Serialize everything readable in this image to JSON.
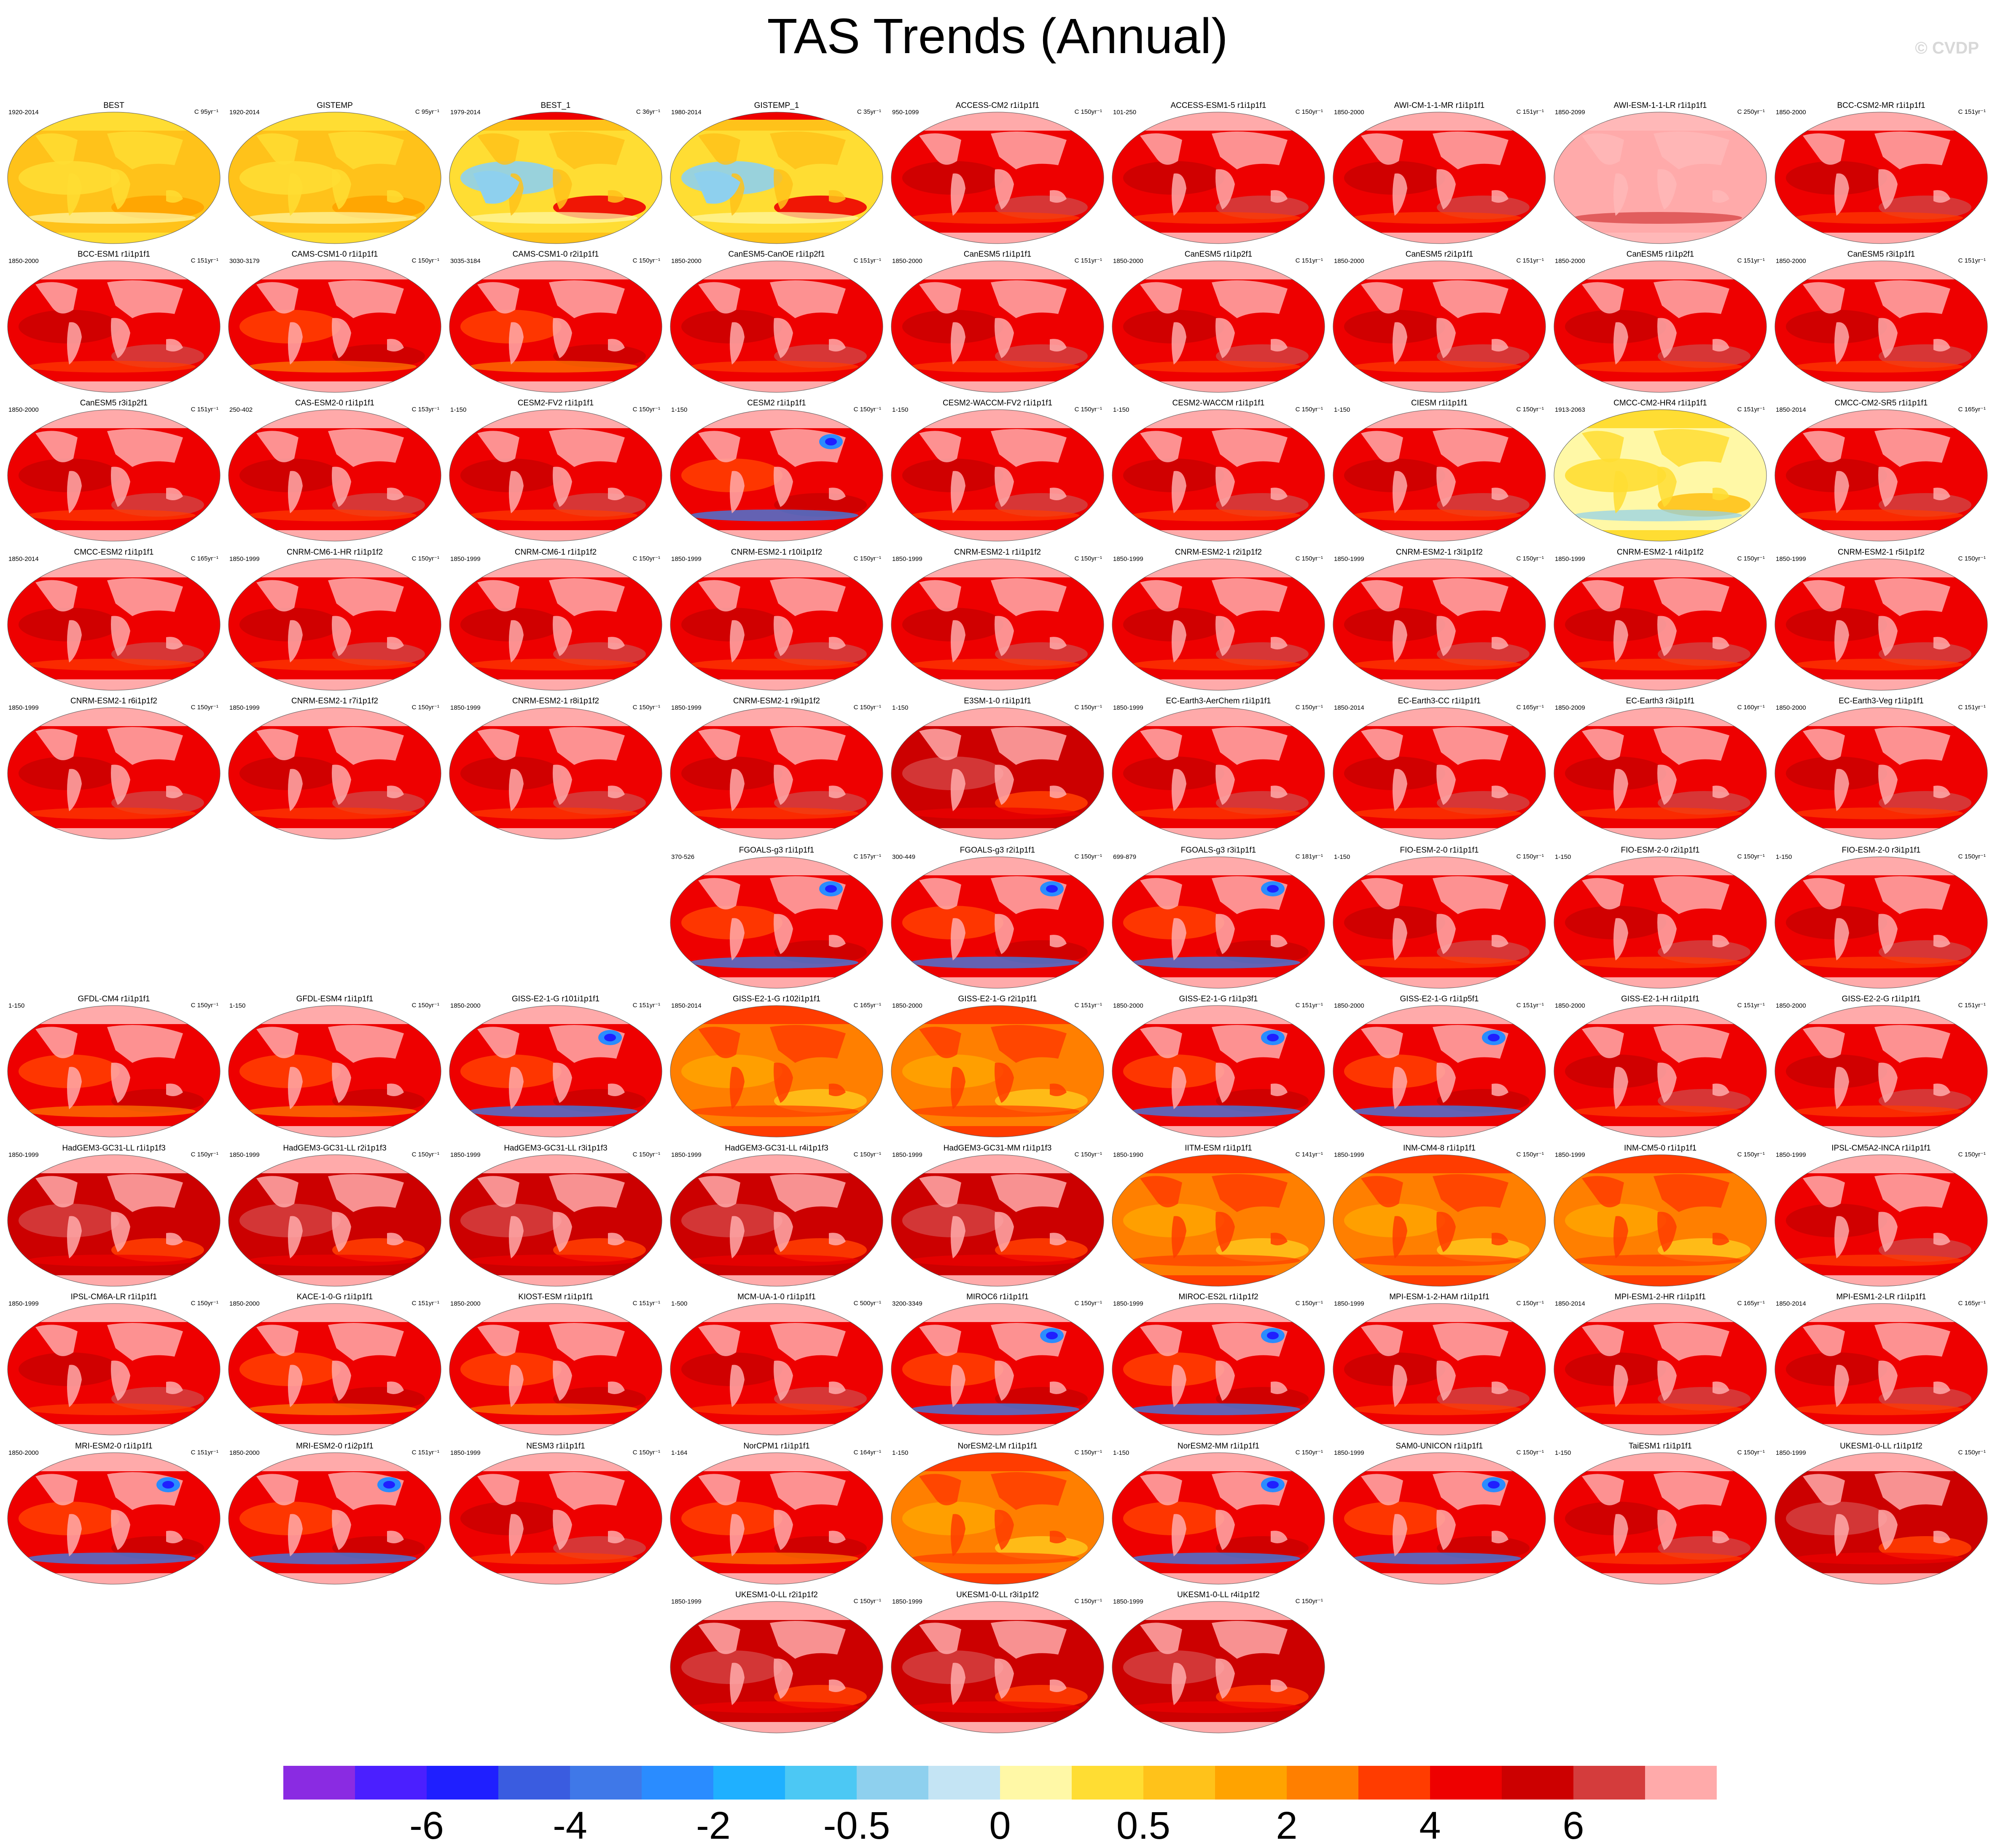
{
  "title": "TAS Trends (Annual)",
  "watermark": "© CVDP",
  "colorbar": {
    "colors": [
      "#8a2be2",
      "#4b1fff",
      "#1f1fff",
      "#3a5ce0",
      "#3f78e8",
      "#2a8cff",
      "#1fb0ff",
      "#4cc8f4",
      "#8ed0ee",
      "#c4e4f4",
      "#fff8a6",
      "#ffdd33",
      "#ffc21a",
      "#ffa300",
      "#ff7f00",
      "#ff3c00",
      "#ee0000",
      "#cc0000",
      "#d43c3c",
      "#ffaaaa"
    ],
    "labels": [
      "-6",
      "-4",
      "-2",
      "-0.5",
      "0",
      "0.5",
      "2",
      "4",
      "6"
    ]
  },
  "panels": [
    {
      "name": "BEST",
      "period": "1920-2014",
      "units": "C 95yr⁻¹",
      "style": "obs"
    },
    {
      "name": "GISTEMP",
      "period": "1920-2014",
      "units": "C 95yr⁻¹",
      "style": "obs"
    },
    {
      "name": "BEST_1",
      "period": "1979-2014",
      "units": "C 36yr⁻¹",
      "style": "obs2"
    },
    {
      "name": "GISTEMP_1",
      "period": "1980-2014",
      "units": "C 35yr⁻¹",
      "style": "obs2"
    },
    {
      "name": "ACCESS-CM2 r1i1p1f1",
      "period": "950-1099",
      "units": "C 150yr⁻¹",
      "style": "red"
    },
    {
      "name": "ACCESS-ESM1-5 r1i1p1f1",
      "period": "101-250",
      "units": "C 150yr⁻¹",
      "style": "red"
    },
    {
      "name": "AWI-CM-1-1-MR r1i1p1f1",
      "period": "1850-2000",
      "units": "C 151yr⁻¹",
      "style": "red"
    },
    {
      "name": "AWI-ESM-1-1-LR r1i1p1f1",
      "period": "1850-2099",
      "units": "C 250yr⁻¹",
      "style": "pink"
    },
    {
      "name": "BCC-CSM2-MR r1i1p1f1",
      "period": "1850-2000",
      "units": "C 151yr⁻¹",
      "style": "red"
    },
    {
      "name": "BCC-ESM1 r1i1p1f1",
      "period": "1850-2000",
      "units": "C 151yr⁻¹",
      "style": "red"
    },
    {
      "name": "CAMS-CSM1-0 r1i1p1f1",
      "period": "3030-3179",
      "units": "C 150yr⁻¹",
      "style": "redorange"
    },
    {
      "name": "CAMS-CSM1-0 r2i1p1f1",
      "period": "3035-3184",
      "units": "C 150yr⁻¹",
      "style": "redorange"
    },
    {
      "name": "CanESM5-CanOE r1i1p2f1",
      "period": "1850-2000",
      "units": "C 151yr⁻¹",
      "style": "red"
    },
    {
      "name": "CanESM5 r1i1p1f1",
      "period": "1850-2000",
      "units": "C 151yr⁻¹",
      "style": "red"
    },
    {
      "name": "CanESM5 r1i1p2f1",
      "period": "1850-2000",
      "units": "C 151yr⁻¹",
      "style": "red"
    },
    {
      "name": "CanESM5 r2i1p1f1",
      "period": "1850-2000",
      "units": "C 151yr⁻¹",
      "style": "red"
    },
    {
      "name": "CanESM5 r1i1p2f1",
      "period": "1850-2000",
      "units": "C 151yr⁻¹",
      "style": "red"
    },
    {
      "name": "CanESM5 r3i1p1f1",
      "period": "1850-2000",
      "units": "C 151yr⁻¹",
      "style": "red"
    },
    {
      "name": "CanESM5 r3i1p2f1",
      "period": "1850-2000",
      "units": "C 151yr⁻¹",
      "style": "red"
    },
    {
      "name": "CAS-ESM2-0 r1i1p1f1",
      "period": "250-402",
      "units": "C 153yr⁻¹",
      "style": "red"
    },
    {
      "name": "CESM2-FV2 r1i1p1f1",
      "period": "1-150",
      "units": "C 150yr⁻¹",
      "style": "red"
    },
    {
      "name": "CESM2 r1i1p1f1",
      "period": "1-150",
      "units": "C 150yr⁻¹",
      "style": "redblue"
    },
    {
      "name": "CESM2-WACCM-FV2 r1i1p1f1",
      "period": "1-150",
      "units": "C 150yr⁻¹",
      "style": "red"
    },
    {
      "name": "CESM2-WACCM r1i1p1f1",
      "period": "1-150",
      "units": "C 150yr⁻¹",
      "style": "red"
    },
    {
      "name": "CIESM r1i1p1f1",
      "period": "1-150",
      "units": "C 150yr⁻¹",
      "style": "red"
    },
    {
      "name": "CMCC-CM2-HR4 r1i1p1f1",
      "period": "1913-2063",
      "units": "C 151yr⁻¹",
      "style": "yellow"
    },
    {
      "name": "CMCC-CM2-SR5 r1i1p1f1",
      "period": "1850-2014",
      "units": "C 165yr⁻¹",
      "style": "red"
    },
    {
      "name": "CMCC-ESM2 r1i1p1f1",
      "period": "1850-2014",
      "units": "C 165yr⁻¹",
      "style": "red"
    },
    {
      "name": "CNRM-CM6-1-HR r1i1p1f2",
      "period": "1850-1999",
      "units": "C 150yr⁻¹",
      "style": "red"
    },
    {
      "name": "CNRM-CM6-1 r1i1p1f2",
      "period": "1850-1999",
      "units": "C 150yr⁻¹",
      "style": "red"
    },
    {
      "name": "CNRM-ESM2-1 r10i1p1f2",
      "period": "1850-1999",
      "units": "C 150yr⁻¹",
      "style": "red"
    },
    {
      "name": "CNRM-ESM2-1 r1i1p1f2",
      "period": "1850-1999",
      "units": "C 150yr⁻¹",
      "style": "red"
    },
    {
      "name": "CNRM-ESM2-1 r2i1p1f2",
      "period": "1850-1999",
      "units": "C 150yr⁻¹",
      "style": "red"
    },
    {
      "name": "CNRM-ESM2-1 r3i1p1f2",
      "period": "1850-1999",
      "units": "C 150yr⁻¹",
      "style": "red"
    },
    {
      "name": "CNRM-ESM2-1 r4i1p1f2",
      "period": "1850-1999",
      "units": "C 150yr⁻¹",
      "style": "red"
    },
    {
      "name": "CNRM-ESM2-1 r5i1p1f2",
      "period": "1850-1999",
      "units": "C 150yr⁻¹",
      "style": "red"
    },
    {
      "name": "CNRM-ESM2-1 r6i1p1f2",
      "period": "1850-1999",
      "units": "C 150yr⁻¹",
      "style": "red"
    },
    {
      "name": "CNRM-ESM2-1 r7i1p1f2",
      "period": "1850-1999",
      "units": "C 150yr⁻¹",
      "style": "red"
    },
    {
      "name": "CNRM-ESM2-1 r8i1p1f2",
      "period": "1850-1999",
      "units": "C 150yr⁻¹",
      "style": "red"
    },
    {
      "name": "CNRM-ESM2-1 r9i1p1f2",
      "period": "1850-1999",
      "units": "C 150yr⁻¹",
      "style": "red"
    },
    {
      "name": "E3SM-1-0 r1i1p1f1",
      "period": "1-150",
      "units": "C 150yr⁻¹",
      "style": "darkred"
    },
    {
      "name": "EC-Earth3-AerChem r1i1p1f1",
      "period": "1850-1999",
      "units": "C 150yr⁻¹",
      "style": "red"
    },
    {
      "name": "EC-Earth3-CC r1i1p1f1",
      "period": "1850-2014",
      "units": "C 165yr⁻¹",
      "style": "red"
    },
    {
      "name": "EC-Earth3 r3i1p1f1",
      "period": "1850-2009",
      "units": "C 160yr⁻¹",
      "style": "red"
    },
    {
      "name": "EC-Earth3-Veg r1i1p1f1",
      "period": "1850-2000",
      "units": "C 151yr⁻¹",
      "style": "red"
    },
    {
      "name": "FGOALS-g3 r1i1p1f1",
      "period": "370-526",
      "units": "C 157yr⁻¹",
      "style": "redblue"
    },
    {
      "name": "FGOALS-g3 r2i1p1f1",
      "period": "300-449",
      "units": "C 150yr⁻¹",
      "style": "redblue"
    },
    {
      "name": "FGOALS-g3 r3i1p1f1",
      "period": "699-879",
      "units": "C 181yr⁻¹",
      "style": "redblue"
    },
    {
      "name": "FIO-ESM-2-0 r1i1p1f1",
      "period": "1-150",
      "units": "C 150yr⁻¹",
      "style": "red"
    },
    {
      "name": "FIO-ESM-2-0 r2i1p1f1",
      "period": "1-150",
      "units": "C 150yr⁻¹",
      "style": "red"
    },
    {
      "name": "FIO-ESM-2-0 r3i1p1f1",
      "period": "1-150",
      "units": "C 150yr⁻¹",
      "style": "red"
    },
    {
      "name": "GFDL-CM4 r1i1p1f1",
      "period": "1-150",
      "units": "C 150yr⁻¹",
      "style": "redorange"
    },
    {
      "name": "GFDL-ESM4 r1i1p1f1",
      "period": "1-150",
      "units": "C 150yr⁻¹",
      "style": "redorange"
    },
    {
      "name": "GISS-E2-1-G r101i1p1f1",
      "period": "1850-2000",
      "units": "C 151yr⁻¹",
      "style": "redblue"
    },
    {
      "name": "GISS-E2-1-G r102i1p1f1",
      "period": "1850-2014",
      "units": "C 165yr⁻¹",
      "style": "orange"
    },
    {
      "name": "GISS-E2-1-G r2i1p1f1",
      "period": "1850-2000",
      "units": "C 151yr⁻¹",
      "style": "orange"
    },
    {
      "name": "GISS-E2-1-G r1i1p3f1",
      "period": "1850-2000",
      "units": "C 151yr⁻¹",
      "style": "redblue"
    },
    {
      "name": "GISS-E2-1-G r1i1p5f1",
      "period": "1850-2000",
      "units": "C 151yr⁻¹",
      "style": "redblue"
    },
    {
      "name": "GISS-E2-1-H r1i1p1f1",
      "period": "1850-2000",
      "units": "C 151yr⁻¹",
      "style": "red"
    },
    {
      "name": "GISS-E2-2-G r1i1p1f1",
      "period": "1850-2000",
      "units": "C 151yr⁻¹",
      "style": "red"
    },
    {
      "name": "HadGEM3-GC31-LL r1i1p1f3",
      "period": "1850-1999",
      "units": "C 150yr⁻¹",
      "style": "darkred"
    },
    {
      "name": "HadGEM3-GC31-LL r2i1p1f3",
      "period": "1850-1999",
      "units": "C 150yr⁻¹",
      "style": "darkred"
    },
    {
      "name": "HadGEM3-GC31-LL r3i1p1f3",
      "period": "1850-1999",
      "units": "C 150yr⁻¹",
      "style": "darkred"
    },
    {
      "name": "HadGEM3-GC31-LL r4i1p1f3",
      "period": "1850-1999",
      "units": "C 150yr⁻¹",
      "style": "darkred"
    },
    {
      "name": "HadGEM3-GC31-MM r1i1p1f3",
      "period": "1850-1999",
      "units": "C 150yr⁻¹",
      "style": "darkred"
    },
    {
      "name": "IITM-ESM r1i1p1f1",
      "period": "1850-1990",
      "units": "C 141yr⁻¹",
      "style": "orange"
    },
    {
      "name": "INM-CM4-8 r1i1p1f1",
      "period": "1850-1999",
      "units": "C 150yr⁻¹",
      "style": "orange"
    },
    {
      "name": "INM-CM5-0 r1i1p1f1",
      "period": "1850-1999",
      "units": "C 150yr⁻¹",
      "style": "orange"
    },
    {
      "name": "IPSL-CM5A2-INCA r1i1p1f1",
      "period": "1850-1999",
      "units": "C 150yr⁻¹",
      "style": "red"
    },
    {
      "name": "IPSL-CM6A-LR r1i1p1f1",
      "period": "1850-1999",
      "units": "C 150yr⁻¹",
      "style": "red"
    },
    {
      "name": "KACE-1-0-G r1i1p1f1",
      "period": "1850-2000",
      "units": "C 151yr⁻¹",
      "style": "redorange"
    },
    {
      "name": "KIOST-ESM r1i1p1f1",
      "period": "1850-2000",
      "units": "C 151yr⁻¹",
      "style": "redorange"
    },
    {
      "name": "MCM-UA-1-0 r1i1p1f1",
      "period": "1-500",
      "units": "C 500yr⁻¹",
      "style": "red"
    },
    {
      "name": "MIROC6 r1i1p1f1",
      "period": "3200-3349",
      "units": "C 150yr⁻¹",
      "style": "redblue"
    },
    {
      "name": "MIROC-ES2L r1i1p1f2",
      "period": "1850-1999",
      "units": "C 150yr⁻¹",
      "style": "redblue"
    },
    {
      "name": "MPI-ESM-1-2-HAM r1i1p1f1",
      "period": "1850-1999",
      "units": "C 150yr⁻¹",
      "style": "red"
    },
    {
      "name": "MPI-ESM1-2-HR r1i1p1f1",
      "period": "1850-2014",
      "units": "C 165yr⁻¹",
      "style": "red"
    },
    {
      "name": "MPI-ESM1-2-LR r1i1p1f1",
      "period": "1850-2014",
      "units": "C 165yr⁻¹",
      "style": "red"
    },
    {
      "name": "MRI-ESM2-0 r1i1p1f1",
      "period": "1850-2000",
      "units": "C 151yr⁻¹",
      "style": "redblue"
    },
    {
      "name": "MRI-ESM2-0 r1i2p1f1",
      "period": "1850-2000",
      "units": "C 151yr⁻¹",
      "style": "redblue"
    },
    {
      "name": "NESM3 r1i1p1f1",
      "period": "1850-1999",
      "units": "C 150yr⁻¹",
      "style": "red"
    },
    {
      "name": "NorCPM1 r1i1p1f1",
      "period": "1-164",
      "units": "C 164yr⁻¹",
      "style": "redorange"
    },
    {
      "name": "NorESM2-LM r1i1p1f1",
      "period": "1-150",
      "units": "C 150yr⁻¹",
      "style": "orange"
    },
    {
      "name": "NorESM2-MM r1i1p1f1",
      "period": "1-150",
      "units": "C 150yr⁻¹",
      "style": "redblue"
    },
    {
      "name": "SAM0-UNICON r1i1p1f1",
      "period": "1850-1999",
      "units": "C 150yr⁻¹",
      "style": "redblue"
    },
    {
      "name": "TaiESM1 r1i1p1f1",
      "period": "1-150",
      "units": "C 150yr⁻¹",
      "style": "red"
    },
    {
      "name": "UKESM1-0-LL r1i1p1f2",
      "period": "1850-1999",
      "units": "C 150yr⁻¹",
      "style": "darkred"
    },
    {
      "name": "UKESM1-0-LL r2i1p1f2",
      "period": "1850-1999",
      "units": "C 150yr⁻¹",
      "style": "darkred"
    },
    {
      "name": "UKESM1-0-LL r3i1p1f2",
      "period": "1850-1999",
      "units": "C 150yr⁻¹",
      "style": "darkred"
    },
    {
      "name": "UKESM1-0-LL r4i1p1f2",
      "period": "1850-1999",
      "units": "C 150yr⁻¹",
      "style": "darkred"
    }
  ]
}
